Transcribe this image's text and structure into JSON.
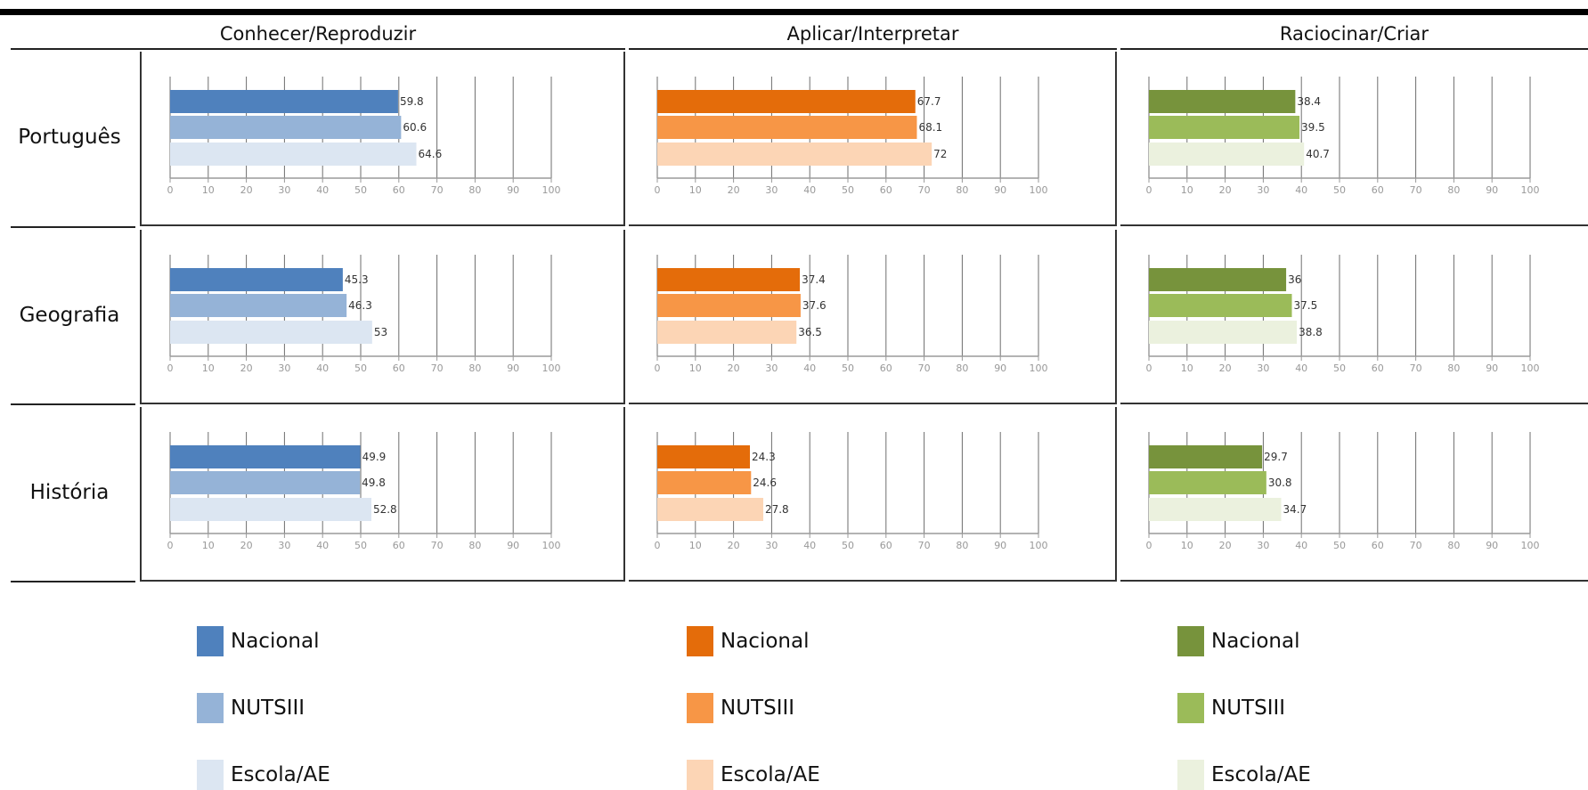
{
  "columns": [
    {
      "title": "Conhecer/Reproduzir",
      "colors": [
        "#4f81bd",
        "#95b3d7",
        "#dce6f2"
      ]
    },
    {
      "title": "Aplicar/Interpretar",
      "colors": [
        "#e46c0a",
        "#f79646",
        "#fcd5b5"
      ]
    },
    {
      "title": "Raciocinar/Criar",
      "colors": [
        "#77933c",
        "#9bbb59",
        "#ebf1de"
      ]
    }
  ],
  "rows": [
    "Português",
    "Geografia",
    "História"
  ],
  "legend": [
    "Nacional",
    "NUTSIII",
    "Escola/AE"
  ],
  "chart_data": {
    "type": "bar",
    "orientation": "horizontal",
    "xlim": [
      0,
      100
    ],
    "ticks": [
      "0",
      "10",
      "20",
      "30",
      "40",
      "50",
      "60",
      "70",
      "80",
      "90",
      "100"
    ],
    "series_names": [
      "Nacional",
      "NUTSIII",
      "Escola/AE"
    ],
    "panels": [
      [
        {
          "values": [
            59.8,
            60.6,
            64.6
          ],
          "labels": [
            "59.8",
            "60.6",
            "64.6"
          ]
        },
        {
          "values": [
            67.7,
            68.1,
            72
          ],
          "labels": [
            "67.7",
            "68.1",
            "72"
          ]
        },
        {
          "values": [
            38.4,
            39.5,
            40.7
          ],
          "labels": [
            "38.4",
            "39.5",
            "40.7"
          ]
        }
      ],
      [
        {
          "values": [
            45.3,
            46.3,
            53
          ],
          "labels": [
            "45.3",
            "46.3",
            "53"
          ]
        },
        {
          "values": [
            37.4,
            37.6,
            36.5
          ],
          "labels": [
            "37.4",
            "37.6",
            "36.5"
          ]
        },
        {
          "values": [
            36,
            37.5,
            38.8
          ],
          "labels": [
            "36",
            "37.5",
            "38.8"
          ]
        }
      ],
      [
        {
          "values": [
            49.9,
            49.8,
            52.8
          ],
          "labels": [
            "49.9",
            "49.8",
            "52.8"
          ]
        },
        {
          "values": [
            24.3,
            24.6,
            27.8
          ],
          "labels": [
            "24.3",
            "24.6",
            "27.8"
          ]
        },
        {
          "values": [
            29.7,
            30.8,
            34.7
          ],
          "labels": [
            "29.7",
            "30.8",
            "34.7"
          ]
        }
      ]
    ]
  }
}
